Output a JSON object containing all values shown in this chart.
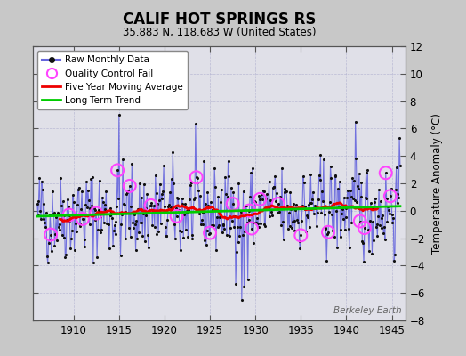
{
  "title": "CALIF HOT SPRINGS RS",
  "subtitle": "35.883 N, 118.683 W (United States)",
  "ylabel": "Temperature Anomaly (°C)",
  "watermark": "Berkeley Earth",
  "xlim": [
    1905.5,
    1946.5
  ],
  "ylim": [
    -8,
    12
  ],
  "yticks": [
    -8,
    -6,
    -4,
    -2,
    0,
    2,
    4,
    6,
    8,
    10,
    12
  ],
  "xticks": [
    1910,
    1915,
    1920,
    1925,
    1930,
    1935,
    1940,
    1945
  ],
  "bg_color": "#c8c8c8",
  "plot_bg_color": "#e0e0e8",
  "raw_color": "#6666dd",
  "raw_marker_color": "#111111",
  "qc_color": "#ff44ff",
  "moving_avg_color": "#ee0000",
  "trend_color": "#00cc00",
  "start_year": 1906.0,
  "end_year": 1945.917,
  "seed": 42
}
